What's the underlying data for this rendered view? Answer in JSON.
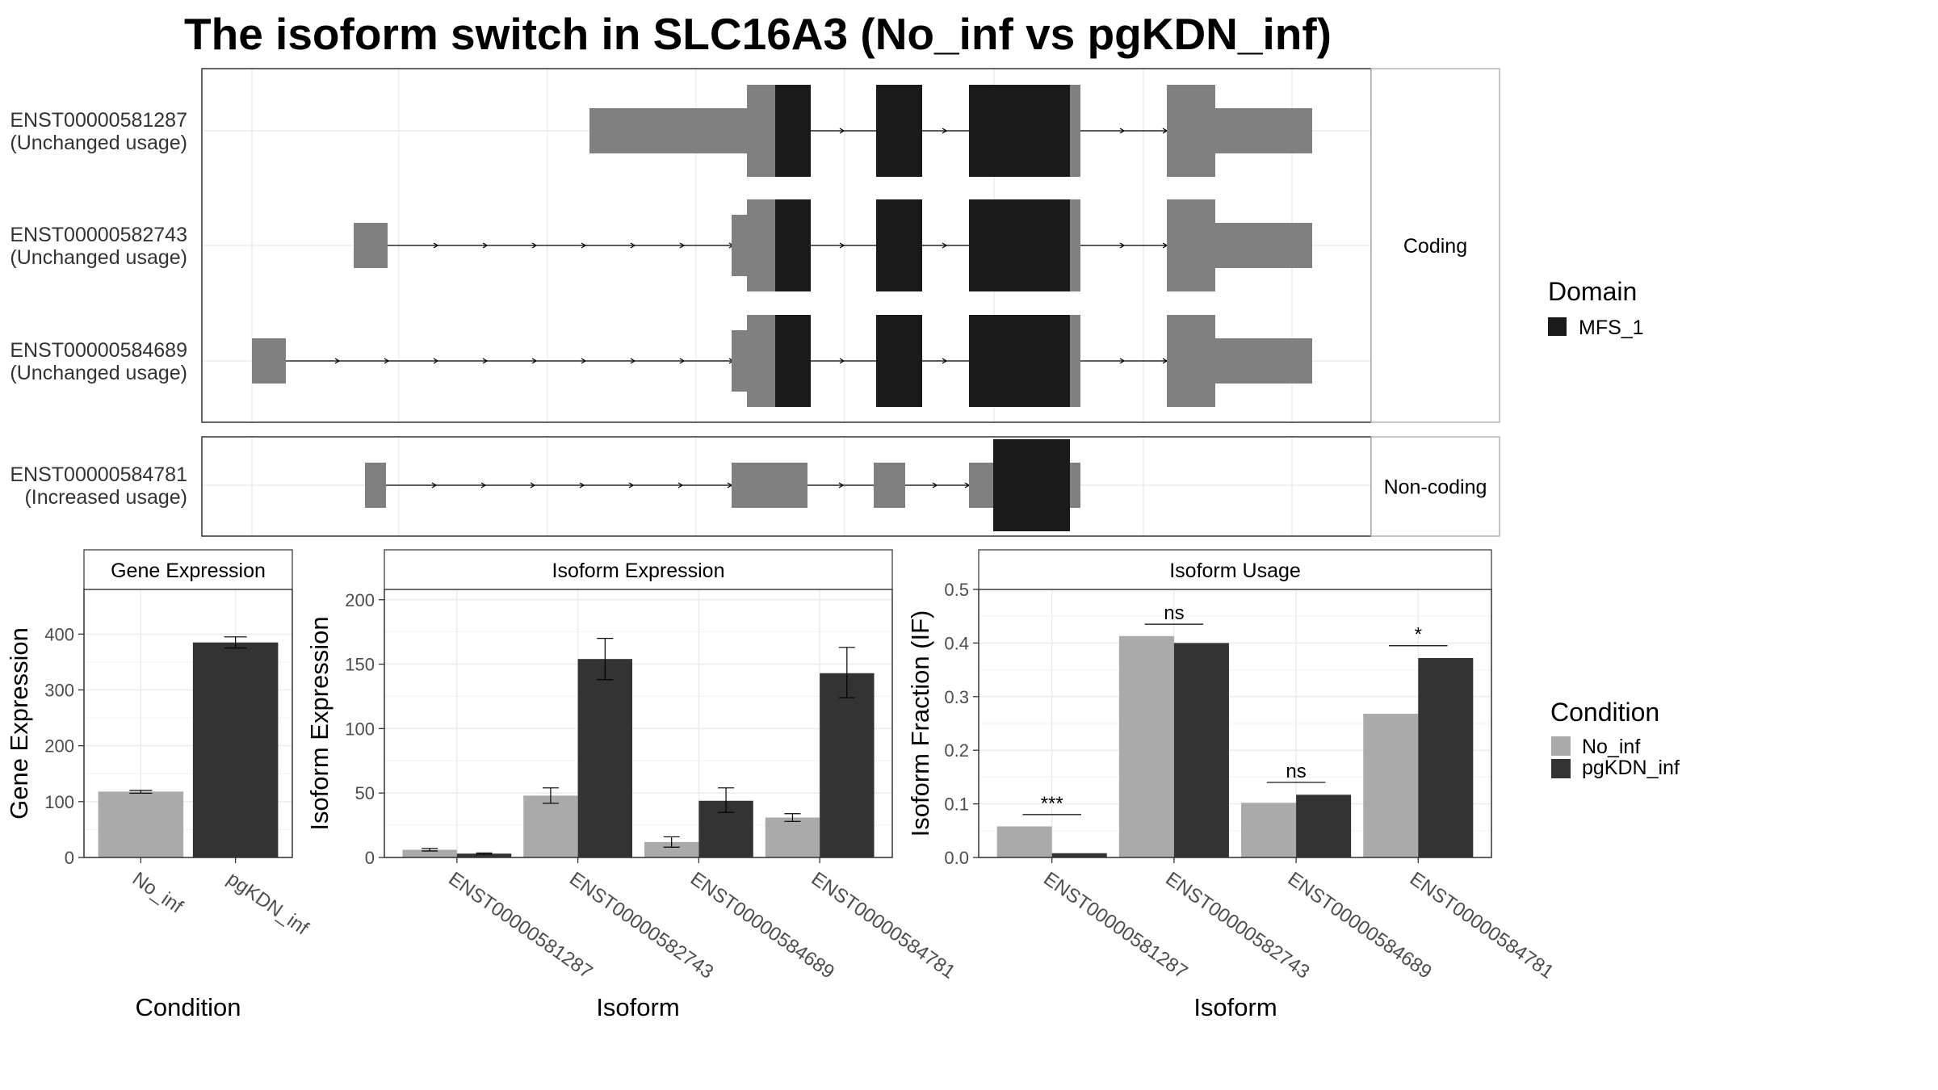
{
  "title": "The isoform switch in SLC16A3 (No_inf vs pgKDN_inf)",
  "colors": {
    "exon": "#808080",
    "domain": "#1a1a1a",
    "cond_no_inf": "#aaaaaa",
    "cond_pgkdn": "#333333",
    "grid": "#ebebeb",
    "strip_bg": "#ffffff",
    "panel_border": "#333333"
  },
  "gene_structure": {
    "facets": [
      {
        "label": "Coding",
        "tracks": [
          {
            "name": "ENST00000581287",
            "status": "(Unchanged usage)"
          },
          {
            "name": "ENST00000582743",
            "status": "(Unchanged usage)"
          },
          {
            "name": "ENST00000584689",
            "status": "(Unchanged usage)"
          }
        ]
      },
      {
        "label": "Non-coding",
        "tracks": [
          {
            "name": "ENST00000584781",
            "status": "(Increased usage)"
          }
        ]
      }
    ],
    "legend": {
      "title": "Domain",
      "items": [
        {
          "label": "MFS_1",
          "color": "#1a1a1a"
        }
      ]
    }
  },
  "condition_legend": {
    "title": "Condition",
    "items": [
      {
        "label": "No_inf",
        "color": "#aaaaaa"
      },
      {
        "label": "pgKDN_inf",
        "color": "#333333"
      }
    ]
  },
  "chart_data": [
    {
      "type": "bar",
      "strip": "Gene Expression",
      "xlabel": "Condition",
      "ylabel": "Gene Expression",
      "ylim": [
        0,
        480
      ],
      "yticks": [
        0,
        100,
        200,
        300,
        400
      ],
      "categories": [
        "No_inf",
        "pgKDN_inf"
      ],
      "values": [
        118,
        385
      ],
      "errors": [
        [
          115,
          120
        ],
        [
          375,
          395
        ]
      ],
      "colors": [
        "#aaaaaa",
        "#333333"
      ]
    },
    {
      "type": "bar",
      "strip": "Isoform Expression",
      "xlabel": "Isoform",
      "ylabel": "Isoform Expression",
      "ylim": [
        0,
        208
      ],
      "yticks": [
        0,
        50,
        100,
        150,
        200
      ],
      "categories": [
        "ENST00000581287",
        "ENST00000582743",
        "ENST00000584689",
        "ENST00000584781"
      ],
      "series": [
        {
          "name": "No_inf",
          "values": [
            6,
            48,
            12,
            31
          ],
          "errors": [
            [
              5,
              7
            ],
            [
              42,
              54
            ],
            [
              8,
              16
            ],
            [
              28,
              34
            ]
          ]
        },
        {
          "name": "pgKDN_inf",
          "values": [
            3,
            154,
            44,
            143
          ],
          "errors": [
            [
              2.5,
              3.5
            ],
            [
              138,
              170
            ],
            [
              35,
              54
            ],
            [
              124,
              163
            ]
          ]
        }
      ]
    },
    {
      "type": "bar",
      "strip": "Isoform Usage",
      "xlabel": "Isoform",
      "ylabel": "Isoform Fraction (IF)",
      "ylim": [
        0,
        0.5
      ],
      "yticks": [
        "0.0",
        "0.1",
        "0.2",
        "0.3",
        "0.4",
        "0.5"
      ],
      "categories": [
        "ENST00000581287",
        "ENST00000582743",
        "ENST00000584689",
        "ENST00000584781"
      ],
      "series": [
        {
          "name": "No_inf",
          "values": [
            0.058,
            0.413,
            0.102,
            0.268
          ]
        },
        {
          "name": "pgKDN_inf",
          "values": [
            0.008,
            0.4,
            0.117,
            0.372
          ]
        }
      ],
      "significance": [
        "***",
        "ns",
        "ns",
        "*"
      ],
      "sig_levels": [
        0.08,
        0.435,
        0.14,
        0.395
      ]
    }
  ]
}
